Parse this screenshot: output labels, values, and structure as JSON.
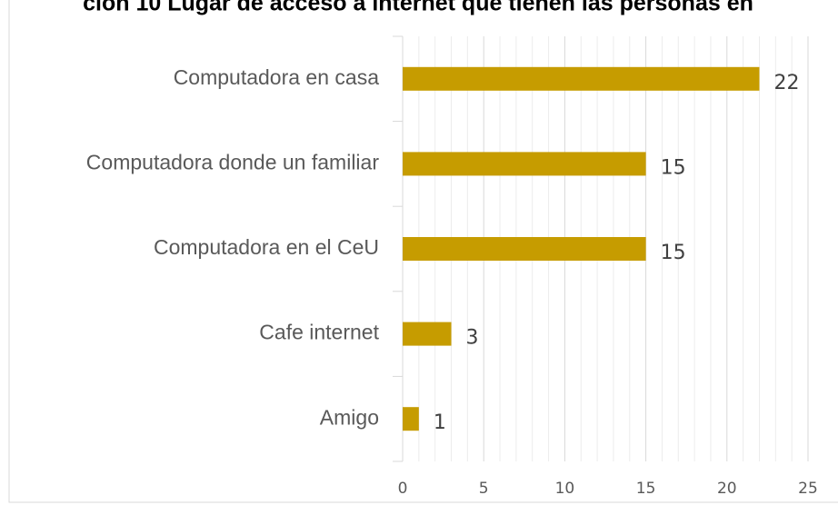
{
  "chart_data": {
    "type": "barh",
    "title": "ción 10 Lugar de acceso a internet que tienen las personas en",
    "categories": [
      "Computadora en casa",
      "Computadora donde un familiar",
      "Computadora en el CeU",
      "Cafe internet",
      "Amigo"
    ],
    "values": [
      22,
      15,
      15,
      3,
      1
    ],
    "color": "#c69c00",
    "xlim": [
      0,
      25
    ],
    "xticks": [
      0,
      5,
      10,
      15,
      20,
      25
    ],
    "grid": true,
    "minor_grid": true
  }
}
